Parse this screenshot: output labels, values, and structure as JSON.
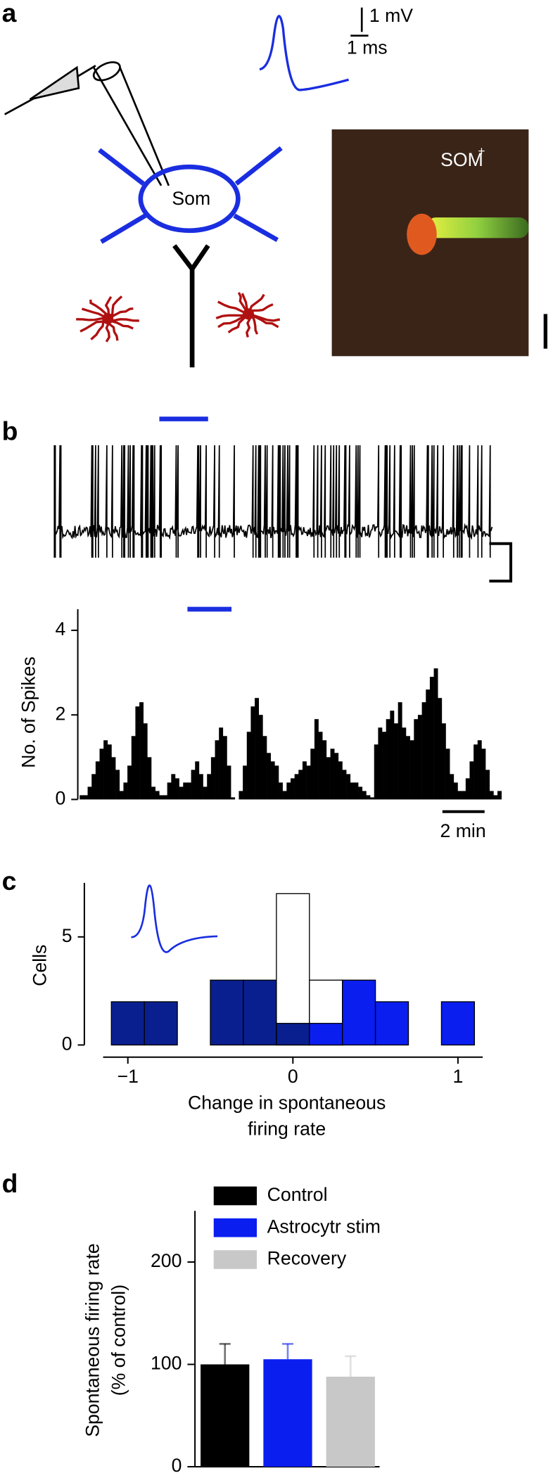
{
  "panels": [
    "a",
    "b",
    "c",
    "d"
  ],
  "panel_a": {
    "scale_voltage": "1 mV",
    "scale_time": "1 ms",
    "cell_label": "Som",
    "image_label": "SOM",
    "image_label_sup": "+"
  },
  "chart_data": [
    {
      "type": "histogram",
      "ylabel": "No. of Spikes",
      "scale_bar": "2 min",
      "color": "#000000",
      "values": [
        0.1,
        0.1,
        0.3,
        0.6,
        0.9,
        1.2,
        1.4,
        1.3,
        1.0,
        0.7,
        0.2,
        0.4,
        0.8,
        1.5,
        2.2,
        2.3,
        1.8,
        1.0,
        0.3,
        0.2,
        0.1,
        0.1,
        0.4,
        0.6,
        0.5,
        0.3,
        0.4,
        0.4,
        0.7,
        0.9,
        0.6,
        0.3,
        0.6,
        1.0,
        1.4,
        1.7,
        1.5,
        0.8,
        0.05,
        0.0,
        0.2,
        0.8,
        1.6,
        2.2,
        2.4,
        2.0,
        1.5,
        1.1,
        0.9,
        0.8,
        0.4,
        0.2,
        0.4,
        0.5,
        0.6,
        0.7,
        0.9,
        0.8,
        1.2,
        1.9,
        1.6,
        1.4,
        1.0,
        1.2,
        1.1,
        0.9,
        0.7,
        0.6,
        0.4,
        0.4,
        0.3,
        0.2,
        0.1,
        0.05,
        1.3,
        1.7,
        1.6,
        1.9,
        2.1,
        1.8,
        2.3,
        1.7,
        1.5,
        1.4,
        1.9,
        2.0,
        2.3,
        2.6,
        2.9,
        3.1,
        2.4,
        1.8,
        1.2,
        0.6,
        0.4,
        0.2,
        0.2,
        0.5,
        0.9,
        1.3,
        1.4,
        1.2,
        0.7,
        0.2,
        0.1,
        0.2
      ],
      "ylim": [
        0,
        4.5
      ],
      "yticks": [
        0,
        2,
        4
      ]
    },
    {
      "type": "histogram",
      "ylabel": "Cells",
      "xlabel": [
        "Change in spontaneous",
        "firing rate"
      ],
      "bins": [
        -1.1,
        -0.9,
        -0.7,
        -0.5,
        -0.3,
        -0.1,
        0.1,
        0.3,
        0.5,
        0.7,
        0.9,
        1.1
      ],
      "series": [
        {
          "color": "#ffffff",
          "values": [
            0,
            0,
            0,
            0,
            0,
            7,
            3,
            0,
            0,
            0,
            0
          ]
        },
        {
          "color": "#0a1f8f",
          "values": [
            2,
            2,
            0,
            3,
            3,
            1,
            0,
            0,
            0,
            0,
            0
          ]
        },
        {
          "color": "#0a1ef0",
          "values": [
            0,
            0,
            0,
            0,
            0,
            0,
            1,
            3,
            2,
            0,
            2
          ]
        }
      ],
      "xlim": [
        -1.15,
        1.15
      ],
      "xticks": [
        {
          "value": -1,
          "label": "−1"
        },
        0,
        1
      ],
      "ylim": [
        0,
        7.5
      ],
      "yticks": [
        0,
        5
      ]
    },
    {
      "type": "bar",
      "ylabel": [
        "Spontaneous firing rate",
        "(% of control)"
      ],
      "series": [
        {
          "name": "Control",
          "color": "#000000",
          "values": [
            100
          ],
          "errors": [
            20
          ]
        },
        {
          "name": "Astrocytr stim",
          "color": "#0a1ef0",
          "values": [
            105
          ],
          "errors": [
            15
          ]
        },
        {
          "name": "Recovery",
          "color": "#c8c8c8",
          "values": [
            88
          ],
          "errors": [
            20
          ]
        }
      ],
      "ylim": [
        0,
        250
      ],
      "yticks": [
        0,
        100,
        200
      ]
    }
  ]
}
